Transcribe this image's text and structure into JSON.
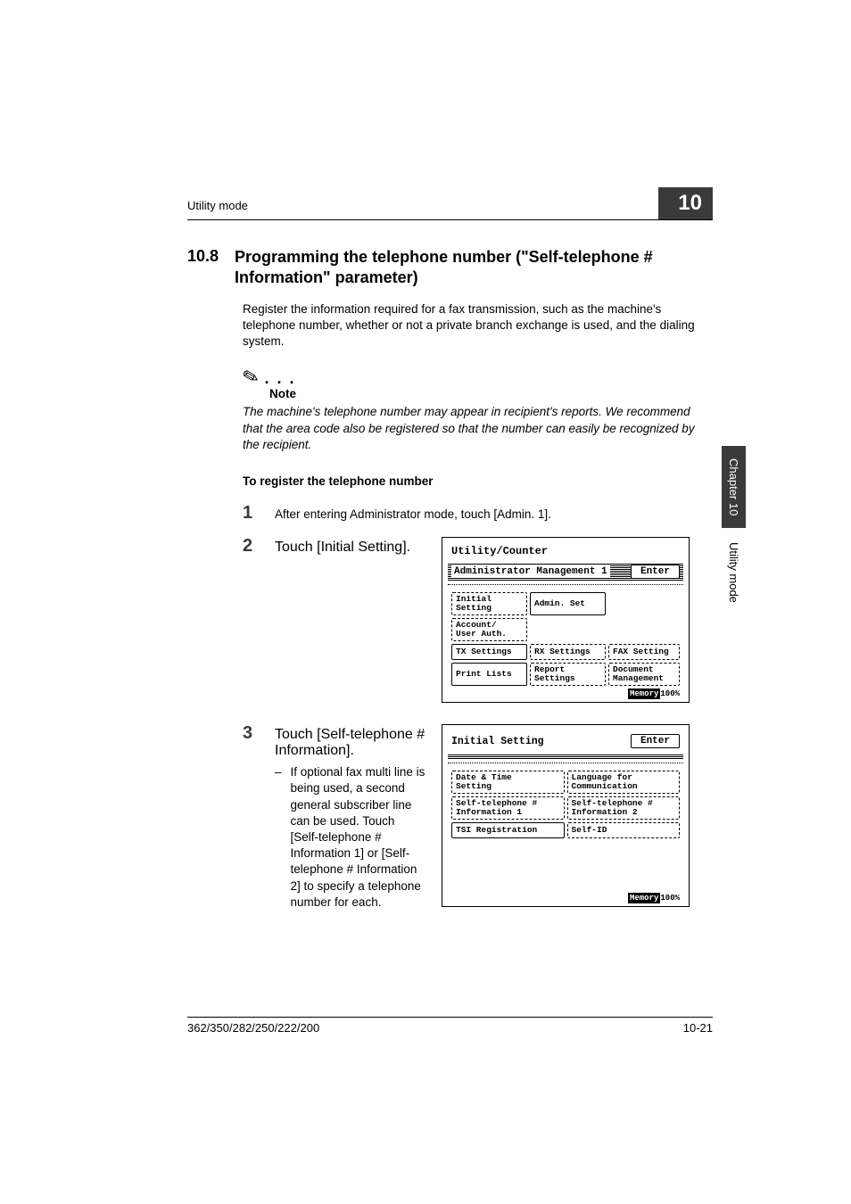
{
  "header": {
    "mode_label": "Utility mode",
    "chapter_number": "10"
  },
  "section": {
    "number": "10.8",
    "title": "Programming the telephone number (\"Self-telephone # Information\" parameter)"
  },
  "intro": "Register the information required for a fax transmission, such as the machine's telephone number, whether or not a private branch exchange is used, and the dialing system.",
  "note": {
    "label": "Note",
    "body": "The machine's telephone number may appear in recipient's reports. We recommend that the area code also be registered so that the number can easily be recognized by the recipient."
  },
  "subhead": "To register the telephone number",
  "steps": {
    "s1": {
      "num": "1",
      "text": "After entering Administrator mode, touch [Admin. 1]."
    },
    "s2": {
      "num": "2",
      "text": "Touch [Initial Setting]."
    },
    "s3": {
      "num": "3",
      "text": "Touch [Self-telephone # Information].",
      "sub": "If optional fax multi line is being used, a second general subscriber line can be used. Touch [Self-telephone # Information 1] or [Self-telephone # Information 2] to specify a telephone number for each."
    }
  },
  "screen1": {
    "title": "Utility/Counter",
    "bar": "Administrator Management 1",
    "enter": "Enter",
    "buttons": {
      "initial": "Initial\nSetting",
      "admin_set": "Admin. Set",
      "account": "Account/\nUser Auth.",
      "tx": "TX Settings",
      "rx": "RX Settings",
      "fax": "FAX Setting",
      "print": "Print Lists",
      "report": "Report\nSettings",
      "doc": "Document\nManagement"
    },
    "memory": "Memory",
    "memval": "100%"
  },
  "screen2": {
    "bar": "Initial Setting",
    "enter": "Enter",
    "buttons": {
      "datetime": "Date & Time\nSetting",
      "lang": "Language for\nCommunication",
      "self1": "Self-telephone #\nInformation 1",
      "self2": "Self-telephone #\nInformation 2",
      "tsi": "TSI Registration",
      "selfid": "Self-ID"
    },
    "memory": "Memory",
    "memval": "100%"
  },
  "sidebar": {
    "chapter": "Chapter 10",
    "label": "Utility mode"
  },
  "footer": {
    "model": "362/350/282/250/222/200",
    "page": "10-21"
  }
}
